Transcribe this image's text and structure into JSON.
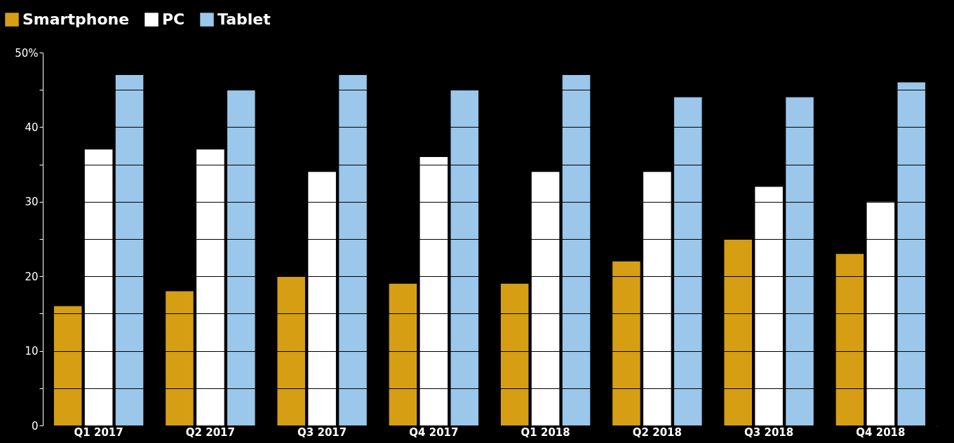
{
  "chart_data": {
    "type": "bar",
    "categories": [
      "Q1 2017",
      "Q2 2017",
      "Q3 2017",
      "Q4 2017",
      "Q1 2018",
      "Q2 2018",
      "Q3 2018",
      "Q4 2018"
    ],
    "series": [
      {
        "name": "Smartphone",
        "color": "#d69e13",
        "values": [
          16,
          18,
          20,
          19,
          19,
          22,
          25,
          23
        ]
      },
      {
        "name": "PC",
        "color": "#ffffff",
        "values": [
          37,
          37,
          34,
          36,
          34,
          34,
          32,
          30
        ]
      },
      {
        "name": "Tablet",
        "color": "#9ac7ea",
        "values": [
          47,
          45,
          47,
          45,
          47,
          44,
          44,
          46
        ]
      }
    ],
    "ylim": [
      0,
      50
    ],
    "yticks": [
      0,
      {
        "value": 5,
        "label": null
      },
      10,
      {
        "value": 15,
        "label": null
      },
      20,
      {
        "value": 25,
        "label": null
      },
      30,
      {
        "value": 35,
        "label": null
      },
      40,
      {
        "value": 45,
        "label": null
      },
      {
        "value": 50,
        "label": "50%"
      }
    ],
    "grid": "y",
    "legend": "top left"
  }
}
